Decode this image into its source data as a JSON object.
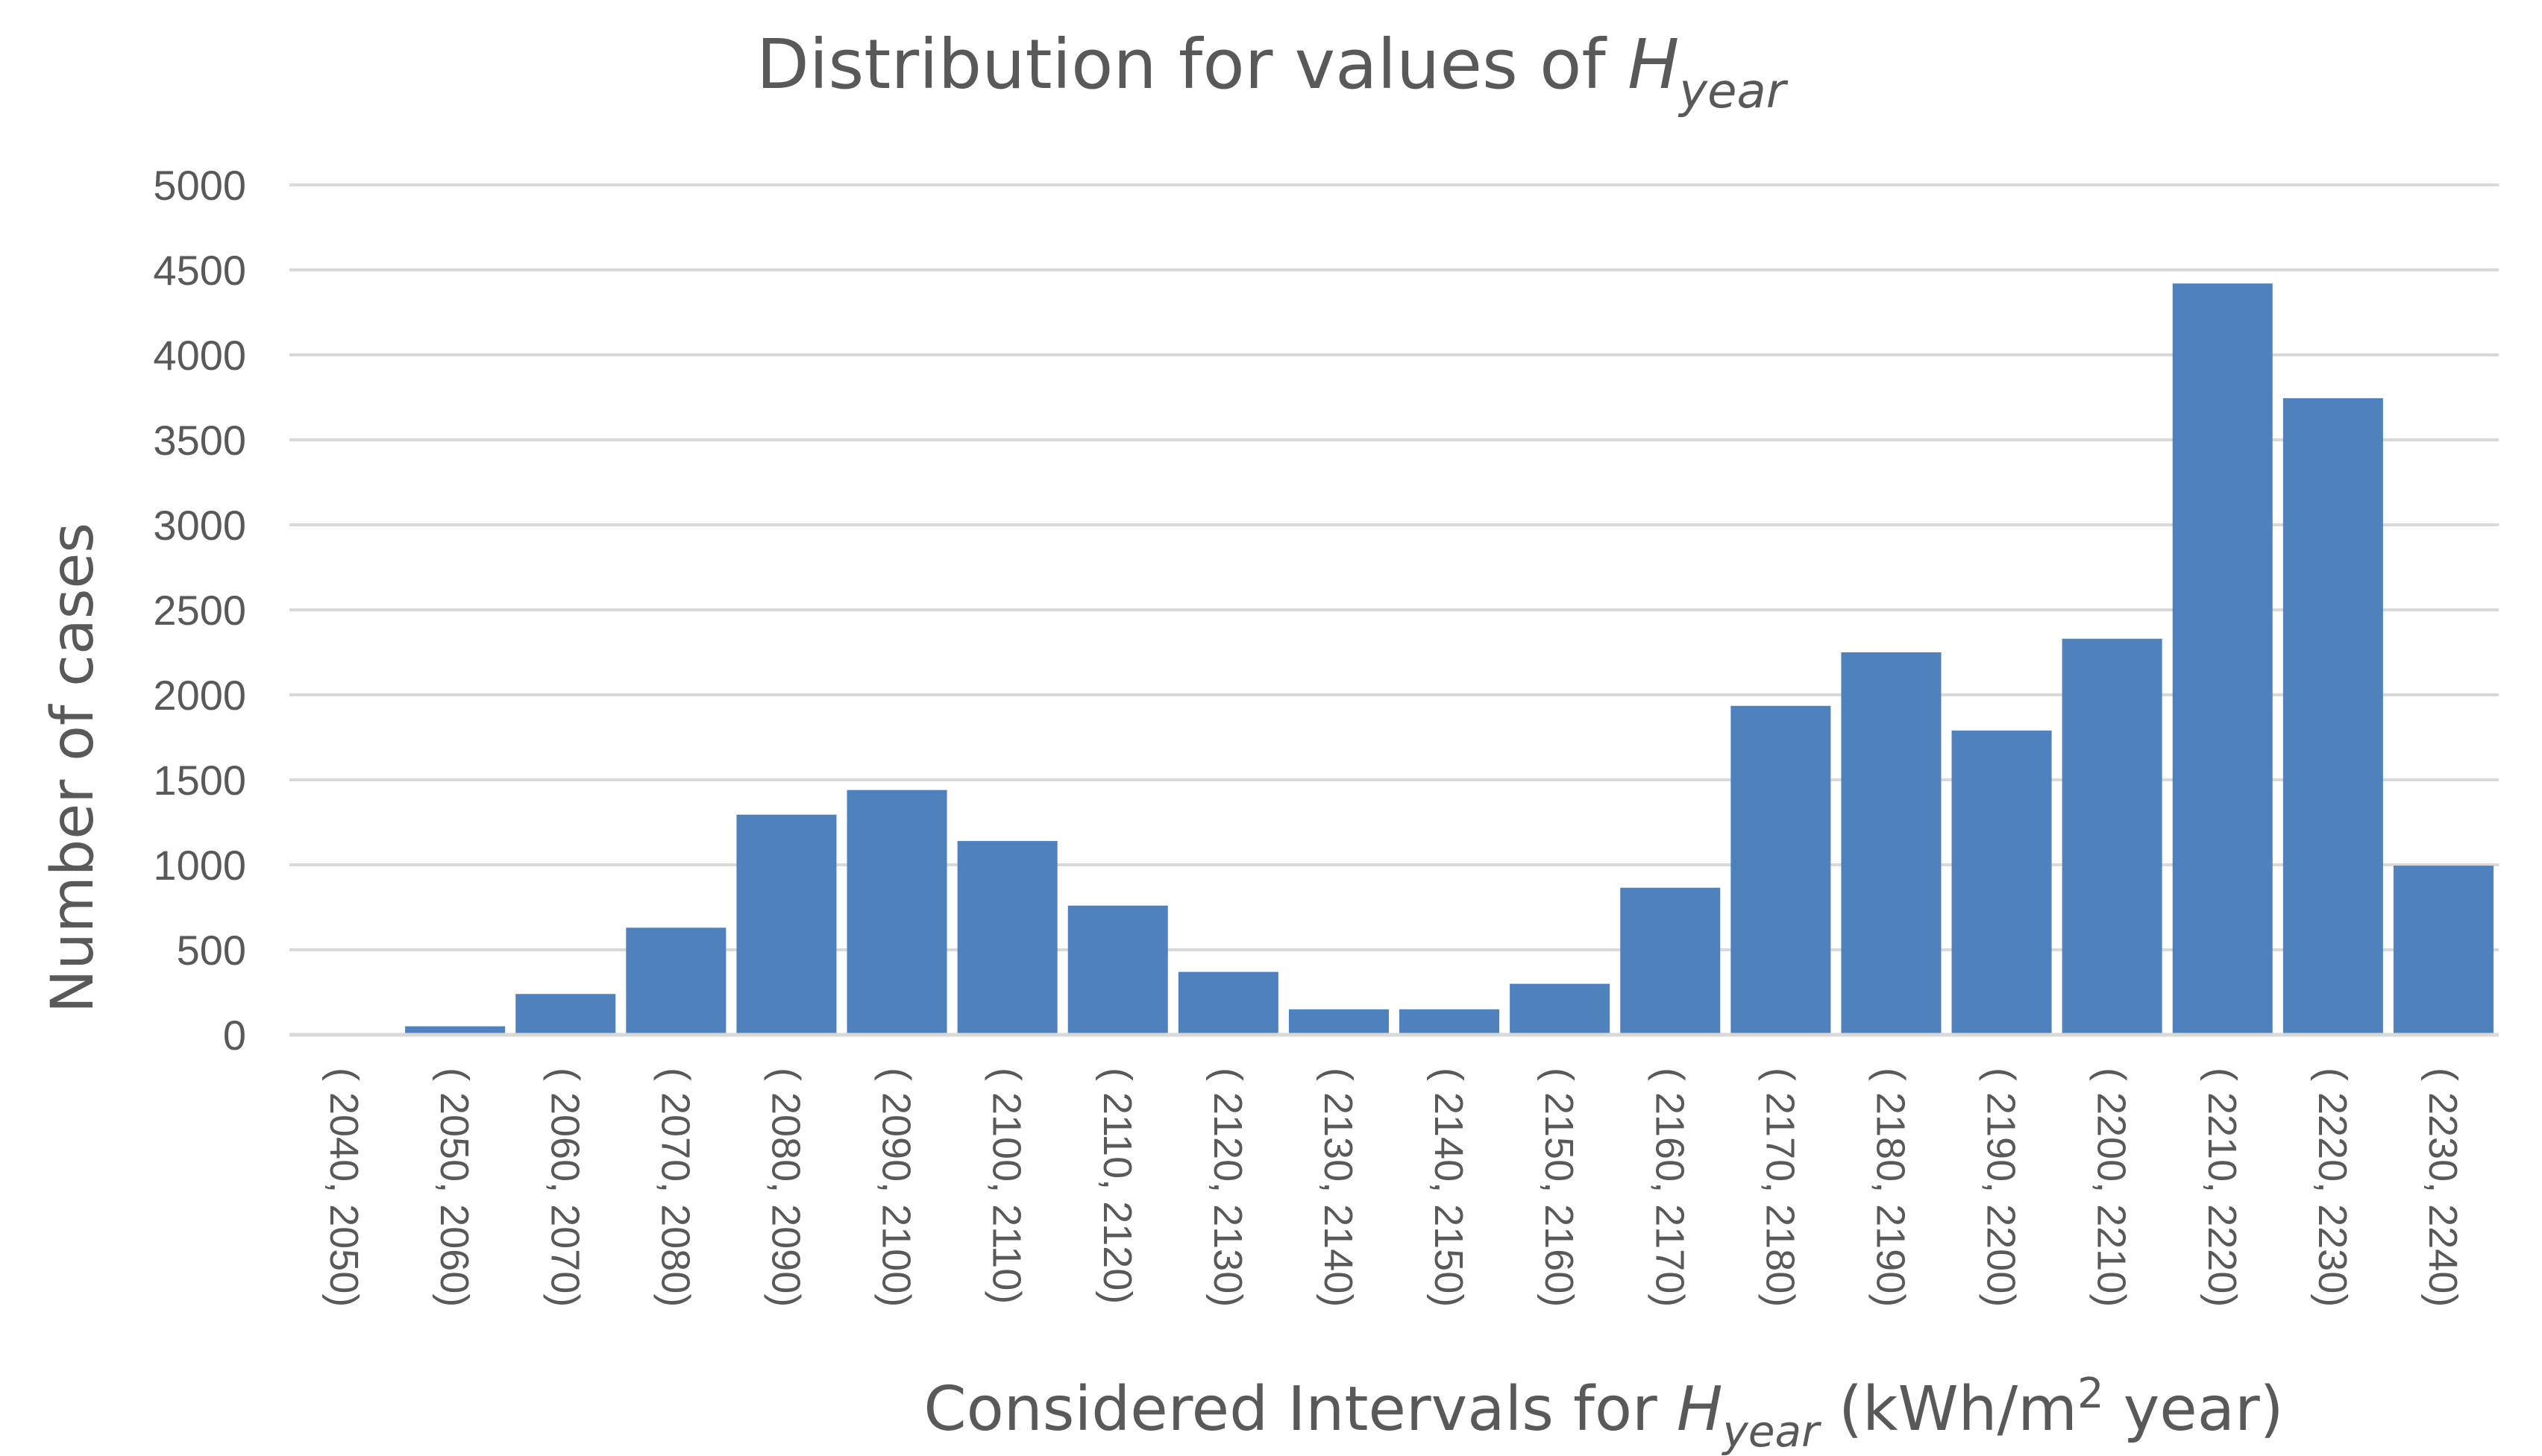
{
  "chart_data": {
    "type": "bar",
    "title": {
      "prefix": "Distribution for values of ",
      "symbol": "H",
      "subscript": "year"
    },
    "xlabel": {
      "prefix": "Considered Intervals for ",
      "symbol": "H",
      "subscript": "year",
      "unit_start": " (kWh/m",
      "superscript": "2",
      "unit_end": " year)"
    },
    "ylabel": "Number of cases",
    "ylim": [
      0,
      5000
    ],
    "yticks": [
      0,
      500,
      1000,
      1500,
      2000,
      2500,
      3000,
      3500,
      4000,
      4500,
      5000
    ],
    "grid": true,
    "categories": [
      "( 2040, 2050)",
      "( 2050, 2060)",
      "( 2060, 2070)",
      "( 2070, 2080)",
      "( 2080, 2090)",
      "( 2090, 2100)",
      "( 2100, 2110)",
      "( 2110, 2120)",
      "( 2120, 2130)",
      "( 2130, 2140)",
      "( 2140, 2150)",
      "( 2150, 2160)",
      "( 2160, 2170)",
      "( 2170, 2180)",
      "( 2180, 2190)",
      "( 2190, 2200)",
      "( 2200, 2210)",
      "( 2210, 2220)",
      "( 2220, 2230)",
      "( 2230, 2240)"
    ],
    "values": [
      0,
      50,
      240,
      630,
      1295,
      1440,
      1140,
      760,
      370,
      150,
      150,
      300,
      865,
      1935,
      2250,
      1790,
      2330,
      4420,
      3745,
      995
    ],
    "bar_color": "#4F81BD"
  }
}
